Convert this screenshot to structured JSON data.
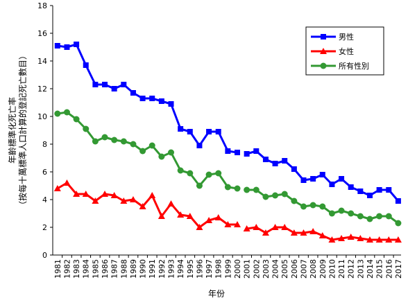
{
  "chart_data": {
    "type": "line",
    "xlabel": "年份",
    "ylabel_lines": [
      "年齡標準化死亡率",
      "（按每十萬標準人口計算的登記死亡數目）"
    ],
    "ylim": [
      0,
      18
    ],
    "yticks": [
      0,
      2,
      4,
      6,
      8,
      10,
      12,
      14,
      16,
      18
    ],
    "grid": false,
    "legend_position": "top-right",
    "x": [
      "1981",
      "1982",
      "1983",
      "1984",
      "1985",
      "1986",
      "1987",
      "1988",
      "1989",
      "1990",
      "1991",
      "1992",
      "1993",
      "1994",
      "1995",
      "1996",
      "1997",
      "1998",
      "1999",
      "2000",
      "2001",
      "2002",
      "2003",
      "2004",
      "2005",
      "2006",
      "2007",
      "2008",
      "2009",
      "2010",
      "2011",
      "2012",
      "2013",
      "2014",
      "2015",
      "2016",
      "2017"
    ],
    "series": [
      {
        "name": "男性",
        "color": "#0000ff",
        "marker": "square",
        "values": [
          15.1,
          15.0,
          15.2,
          13.7,
          12.3,
          12.3,
          12.0,
          12.3,
          11.7,
          11.3,
          11.3,
          11.1,
          10.9,
          9.1,
          8.9,
          7.9,
          8.9,
          8.9,
          7.5,
          7.4,
          7.3,
          7.5,
          6.9,
          6.6,
          6.8,
          6.2,
          5.4,
          5.5,
          5.8,
          5.1,
          5.5,
          4.9,
          4.6,
          4.3,
          4.7,
          4.7,
          3.9
        ],
        "gaps_after": [
          "2000"
        ]
      },
      {
        "name": "女性",
        "color": "#ff0000",
        "marker": "triangle",
        "values": [
          4.8,
          5.2,
          4.4,
          4.4,
          3.9,
          4.4,
          4.3,
          3.9,
          4.0,
          3.5,
          4.3,
          2.8,
          3.7,
          2.9,
          2.8,
          2.0,
          2.5,
          2.7,
          2.2,
          2.2,
          1.9,
          2.0,
          1.6,
          2.0,
          2.0,
          1.6,
          1.6,
          1.7,
          1.4,
          1.1,
          1.2,
          1.3,
          1.2,
          1.1,
          1.1,
          1.1,
          1.1
        ],
        "gaps_after": [
          "2000"
        ]
      },
      {
        "name": "所有性別",
        "color": "#339933",
        "marker": "circle",
        "values": [
          10.2,
          10.3,
          9.8,
          9.1,
          8.2,
          8.5,
          8.3,
          8.2,
          8.0,
          7.5,
          7.9,
          7.1,
          7.4,
          6.1,
          5.9,
          5.0,
          5.8,
          5.9,
          4.9,
          4.8,
          4.7,
          4.7,
          4.2,
          4.3,
          4.4,
          3.9,
          3.5,
          3.6,
          3.5,
          3.0,
          3.2,
          3.0,
          2.8,
          2.6,
          2.8,
          2.8,
          2.3
        ],
        "gaps_after": [
          "2000"
        ]
      }
    ]
  }
}
